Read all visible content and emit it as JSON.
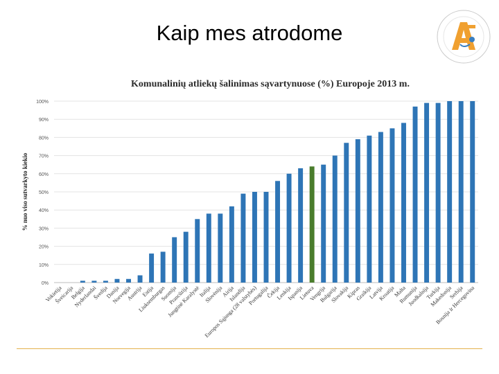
{
  "slide": {
    "title": "Kaip mes atrodome"
  },
  "logo": {
    "alt_text": "Lietuvos Respublikos aplinkos ministerija"
  },
  "colors": {
    "bar": "#2e75b6",
    "highlight": "#4a7d2c",
    "grid": "#e3e3e3",
    "footer_rule": "#e3b04b"
  },
  "chart_data": {
    "type": "bar",
    "title": "Komunalinių atliekų šalinimas sąvartynuose (%) Europoje 2013 m.",
    "ylabel": "% nuo viso sutvarkyto kiekio",
    "xlabel": "",
    "ylim": [
      0,
      100
    ],
    "yticks": [
      "0%",
      "10%",
      "20%",
      "30%",
      "40%",
      "50%",
      "60%",
      "70%",
      "80%",
      "90%",
      "100%"
    ],
    "grid": true,
    "highlight": "Lietuva",
    "categories": [
      "Vokietija",
      "Šveicarija",
      "Belgija",
      "Nyderlandai",
      "Švedija",
      "Danija",
      "Norvegija",
      "Austrija",
      "Estija",
      "Liuksemburgas",
      "Suomija",
      "Prancūzija",
      "Jungtinė Karalystė",
      "Italija",
      "Slovėnija",
      "Airija",
      "Islandija",
      "Europos Sąjunga (28 valstybės)",
      "Portugalija",
      "Čekija",
      "Lenkija",
      "Ispanija",
      "Lietuva",
      "Vengrija",
      "Bulgarija",
      "Slovakija",
      "Kipras",
      "Graikija",
      "Latvija",
      "Kroatija",
      "Malta",
      "Rumunija",
      "Juodkalnija",
      "Turkija",
      "Makedonija",
      "Serbija",
      "Bosnija ir Hercegovina"
    ],
    "values": [
      0,
      0,
      1,
      1,
      1,
      2,
      2,
      4,
      16,
      17,
      25,
      28,
      35,
      38,
      38,
      42,
      49,
      50,
      50,
      56,
      60,
      63,
      64,
      65,
      70,
      77,
      79,
      81,
      83,
      85,
      88,
      97,
      99,
      99,
      100,
      100,
      100
    ]
  }
}
